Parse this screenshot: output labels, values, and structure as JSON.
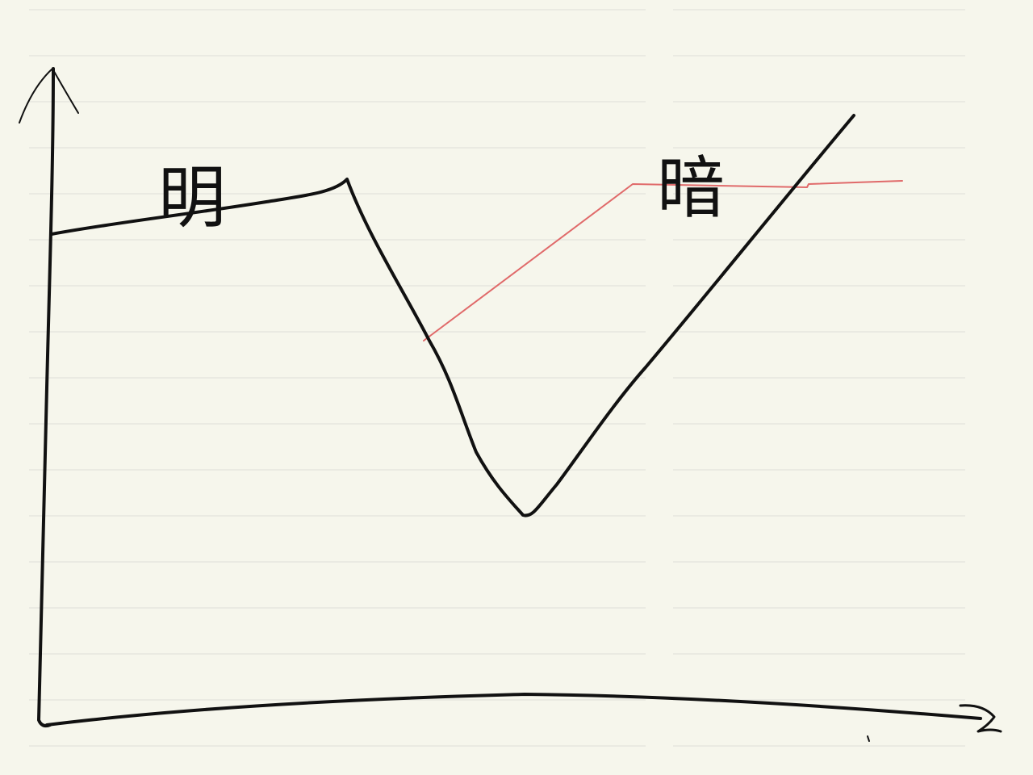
{
  "labels": {
    "bright": "明",
    "dark": "暗"
  },
  "colors": {
    "paper": "#f6f6ec",
    "ruling": "#e4e4dc",
    "ink": "#111111",
    "red_ink": "#e06a6a"
  }
}
